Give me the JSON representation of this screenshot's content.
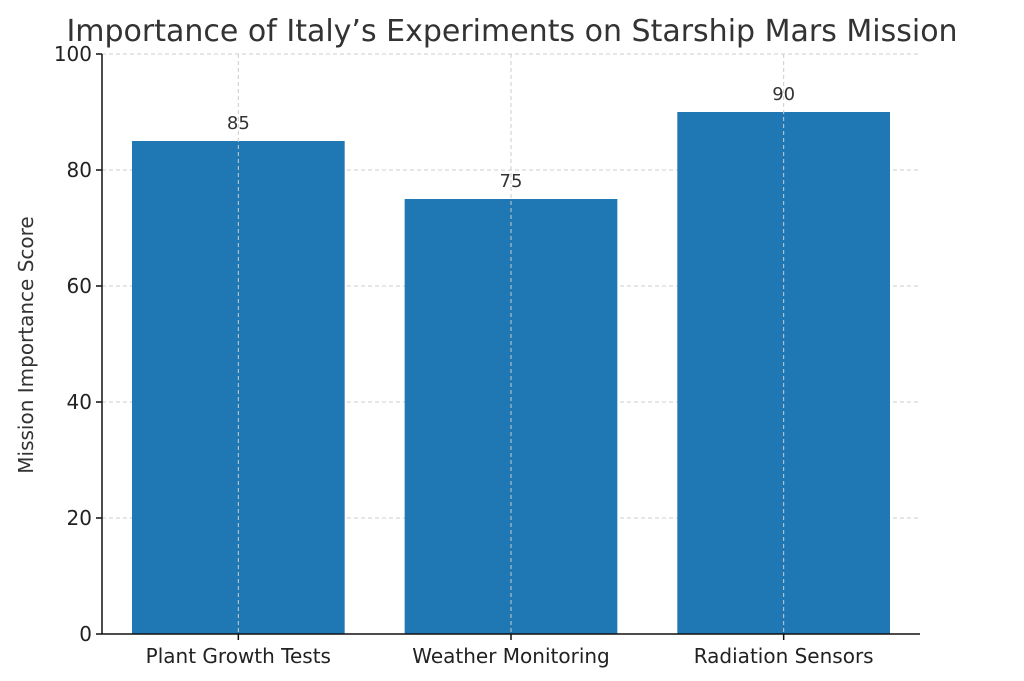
{
  "chart_data": {
    "type": "bar",
    "title": "Importance of Italy’s Experiments on Starship Mars Mission",
    "xlabel": "",
    "ylabel": "Mission Importance Score",
    "categories": [
      "Plant Growth Tests",
      "Weather Monitoring",
      "Radiation Sensors"
    ],
    "values": [
      85,
      75,
      90
    ],
    "data_labels": [
      "85",
      "75",
      "90"
    ],
    "ylim": [
      0,
      100
    ],
    "yticks": [
      0,
      20,
      40,
      60,
      80,
      100
    ],
    "grid": true,
    "bar_color": "#1f77b4"
  }
}
